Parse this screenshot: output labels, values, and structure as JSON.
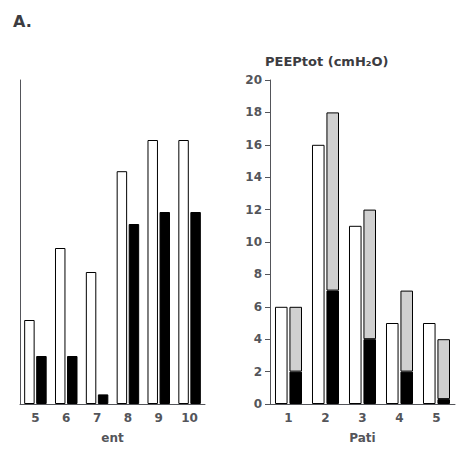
{
  "chart_data": [
    {
      "type": "bar",
      "title": "A.",
      "xlabel": "ent",
      "categories": [
        "5",
        "6",
        "7",
        "8",
        "9",
        "10"
      ],
      "series": [
        {
          "color": "#ffffff",
          "values": [
            3.5,
            6.5,
            5.5,
            9.7,
            11.0,
            11.0
          ]
        },
        {
          "color": "#000000",
          "values": [
            2.0,
            2.0,
            0.4,
            7.5,
            8.0,
            8.0
          ]
        }
      ],
      "ylim": [
        0,
        13.5
      ],
      "tick_labels": "x",
      "grid": false
    },
    {
      "type": "bar",
      "title": "PEEPtot (cmH₂O)",
      "xlabel": "Pati",
      "categories": [
        "1",
        "2",
        "3",
        "4",
        "5"
      ],
      "series": [
        {
          "color": "#ffffff",
          "values": [
            6.0,
            16.0,
            11.0,
            5.0,
            5.0
          ]
        },
        {
          "color": "#000000",
          "values": [
            2.0,
            7.0,
            4.0,
            2.0,
            0.3
          ],
          "stacked": true
        },
        {
          "color": "#d0d0d0",
          "values": [
            4.0,
            11.0,
            8.0,
            5.0,
            3.7
          ],
          "stacked": true
        }
      ],
      "ylim": [
        0,
        20
      ],
      "yticks": [
        0,
        2,
        4,
        6,
        8,
        10,
        12,
        14,
        16,
        18,
        20
      ],
      "grid": false
    }
  ]
}
